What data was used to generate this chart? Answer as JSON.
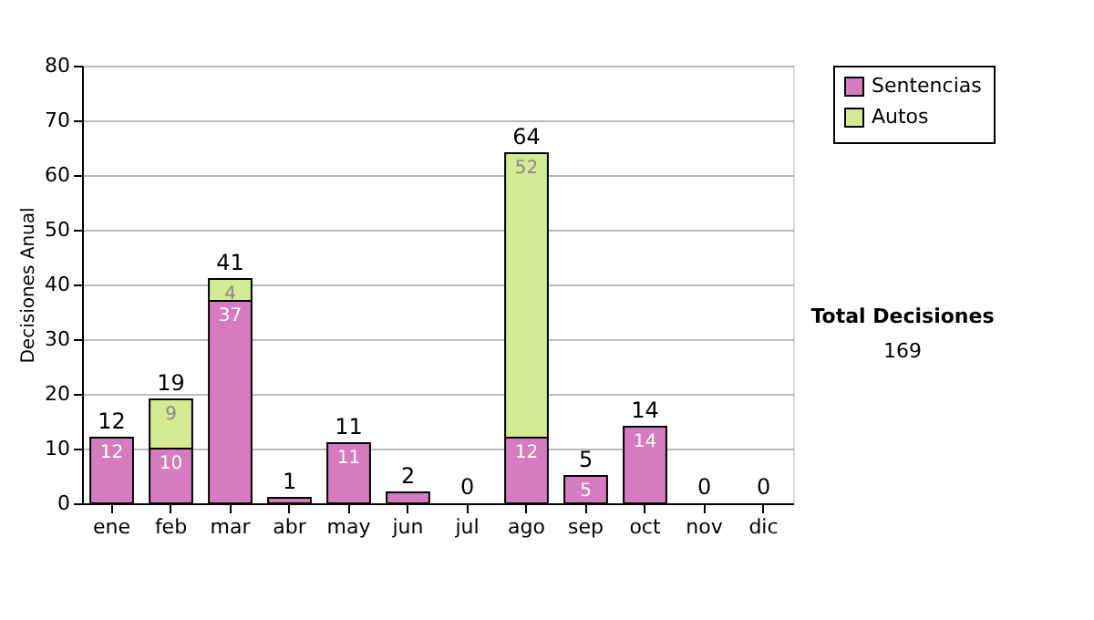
{
  "chart_data": {
    "type": "bar",
    "stacked": true,
    "ylabel": "Decisiones Anual",
    "categories": [
      "ene",
      "feb",
      "mar",
      "abr",
      "may",
      "jun",
      "jul",
      "ago",
      "sep",
      "oct",
      "nov",
      "dic"
    ],
    "series": [
      {
        "name": "Sentencias",
        "color": "#d67bbf",
        "values": [
          12,
          10,
          37,
          1,
          11,
          2,
          0,
          12,
          5,
          14,
          0,
          0
        ],
        "value_labels": [
          "12",
          "10",
          "37",
          null,
          "11",
          null,
          null,
          "12",
          "5",
          "14",
          null,
          null
        ]
      },
      {
        "name": "Autos",
        "color": "#d4ea93",
        "values": [
          0,
          9,
          4,
          0,
          0,
          0,
          0,
          52,
          0,
          0,
          0,
          0
        ],
        "value_labels": [
          null,
          "9",
          "4",
          null,
          null,
          null,
          null,
          "52",
          null,
          null,
          null,
          null
        ]
      }
    ],
    "totals": [
      "12",
      "19",
      "41",
      "1",
      "11",
      "2",
      "0",
      "64",
      "5",
      "14",
      "0",
      "0"
    ],
    "ylim": [
      0,
      80
    ],
    "yticks": [
      0,
      10,
      20,
      30,
      40,
      50,
      60,
      70,
      80
    ],
    "grid": "y",
    "legend": "right",
    "annotations": [
      "Total Decisiones",
      "169"
    ]
  }
}
